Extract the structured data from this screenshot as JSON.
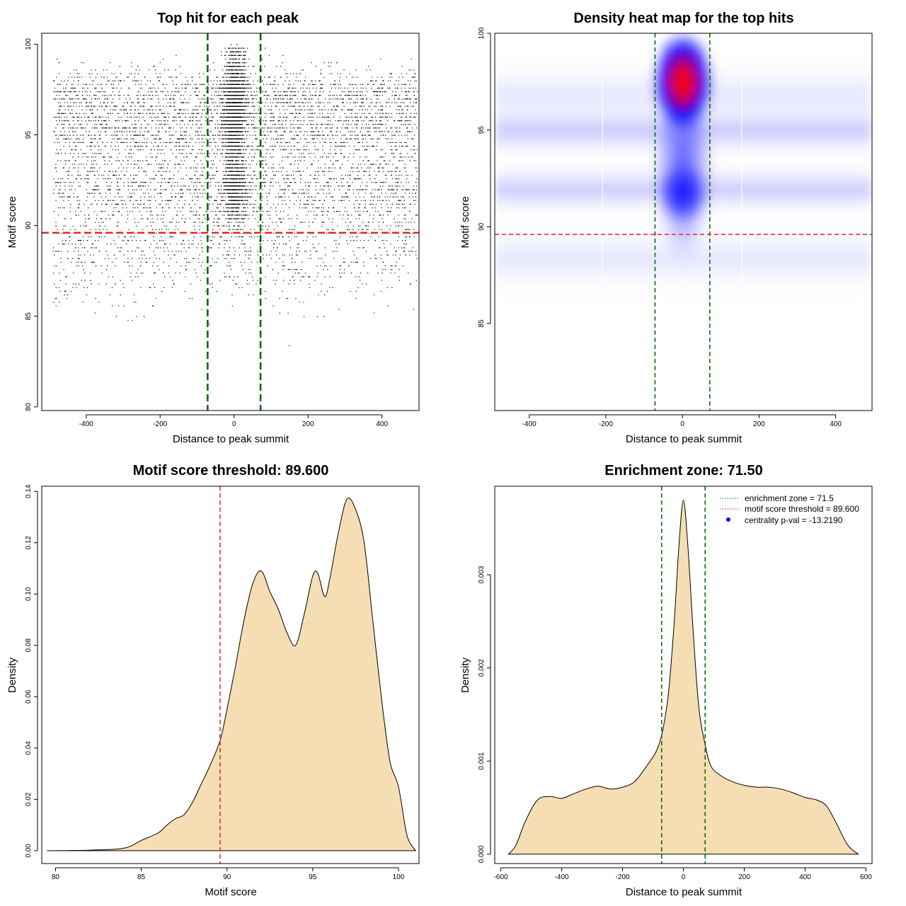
{
  "chart_data": [
    {
      "type": "scatter",
      "title": "Top hit for each peak",
      "xlabel": "Distance to peak summit",
      "ylabel": "Motif score",
      "xlim": [
        -520,
        500
      ],
      "ylim": [
        79.8,
        100.6
      ],
      "xticks": [
        -400,
        -200,
        0,
        200,
        400
      ],
      "yticks": [
        80,
        85,
        90,
        95,
        100
      ],
      "vlines": [
        -71.5,
        71.5
      ],
      "vline_color": "#006400",
      "hline": 89.6,
      "hline_color": "#e0262e",
      "point_color": "#000000"
    },
    {
      "type": "heatmap",
      "title": "Density heat map for the top hits",
      "xlabel": "Distance to peak summit",
      "ylabel": "Motif score",
      "xlim": [
        -490,
        495
      ],
      "ylim": [
        80.5,
        100
      ],
      "xticks": [
        -400,
        -200,
        0,
        200,
        400
      ],
      "yticks": [
        85,
        90,
        95,
        100
      ],
      "vlines": [
        -71.5,
        71.5
      ],
      "vline_color": "#006400",
      "hline": 89.6,
      "hline_color": "#e0262e",
      "colors": [
        "#ffffff",
        "#0000ff",
        "#ff0000"
      ],
      "hotspots": [
        {
          "x": 0,
          "y": 97.5,
          "peak": "red"
        },
        {
          "x": 0,
          "y": 92,
          "peak": "blue"
        }
      ]
    },
    {
      "type": "area",
      "title": "Motif score threshold: 89.600",
      "xlabel": "Motif score",
      "ylabel": "Density",
      "xlim": [
        79.2,
        101.2
      ],
      "ylim": [
        -0.005,
        0.142
      ],
      "xticks": [
        80,
        85,
        90,
        95,
        100
      ],
      "yticks": [
        0.0,
        0.02,
        0.04,
        0.06,
        0.08,
        0.1,
        0.12,
        0.14
      ],
      "ytick_labels": [
        "0.00",
        "0.02",
        "0.04",
        "0.06",
        "0.08",
        "0.10",
        "0.12",
        "0.14"
      ],
      "vline": 89.6,
      "vline_color": "#e0262e",
      "fill": "#f5deb3",
      "x": [
        79.5,
        82,
        84,
        85,
        86,
        86.5,
        87,
        87.5,
        88,
        88.5,
        89,
        89.6,
        90,
        90.5,
        91,
        91.5,
        92,
        92.5,
        93,
        93.5,
        94,
        94.5,
        95,
        95.3,
        95.7,
        96,
        96.5,
        97,
        97.5,
        98,
        98.5,
        99,
        99.5,
        100,
        100.5,
        101
      ],
      "values": [
        0.0,
        0.0002,
        0.001,
        0.004,
        0.007,
        0.01,
        0.0125,
        0.014,
        0.019,
        0.026,
        0.033,
        0.043,
        0.055,
        0.072,
        0.09,
        0.104,
        0.109,
        0.101,
        0.094,
        0.085,
        0.08,
        0.092,
        0.107,
        0.108,
        0.099,
        0.106,
        0.124,
        0.137,
        0.133,
        0.12,
        0.09,
        0.06,
        0.035,
        0.025,
        0.006,
        0.0
      ]
    },
    {
      "type": "area",
      "title": "Enrichment zone: 71.50",
      "xlabel": "Distance to peak summit",
      "ylabel": "Density",
      "xlim": [
        -620,
        620
      ],
      "ylim": [
        -0.0001,
        0.00395
      ],
      "xticks": [
        -600,
        -400,
        -200,
        0,
        200,
        400,
        600
      ],
      "yticks": [
        0.0,
        0.001,
        0.002,
        0.003
      ],
      "ytick_labels": [
        "0.000",
        "0.001",
        "0.002",
        "0.003"
      ],
      "vlines": [
        -71.5,
        71.5
      ],
      "vline_color": "#006400",
      "fill": "#f5deb3",
      "x": [
        -575,
        -550,
        -520,
        -480,
        -440,
        -400,
        -360,
        -320,
        -280,
        -240,
        -200,
        -160,
        -120,
        -90,
        -70,
        -50,
        -30,
        -15,
        0,
        15,
        30,
        50,
        70,
        90,
        120,
        160,
        200,
        240,
        280,
        320,
        360,
        400,
        440,
        470,
        500,
        540,
        575
      ],
      "values": [
        0.0,
        0.0001,
        0.00035,
        0.00058,
        0.00062,
        0.0006,
        0.00065,
        0.0007,
        0.00073,
        0.0007,
        0.00072,
        0.00078,
        0.00095,
        0.0011,
        0.0013,
        0.0017,
        0.0025,
        0.0033,
        0.0038,
        0.0033,
        0.0025,
        0.0016,
        0.0012,
        0.00095,
        0.00085,
        0.00078,
        0.00074,
        0.00072,
        0.00072,
        0.0007,
        0.00066,
        0.00061,
        0.00058,
        0.00052,
        0.00035,
        0.0001,
        0.0
      ],
      "legend": [
        {
          "label": "enrichment zone = 71.5",
          "color": "#006400",
          "marker": "dotted"
        },
        {
          "label": "motif score threshold = 89.600",
          "color": "#e0262e",
          "marker": "dotted"
        },
        {
          "label": "centrality p-val = -13.2190",
          "color": "#0000ff",
          "marker": "dot"
        }
      ],
      "legend_position": "top-right"
    }
  ]
}
